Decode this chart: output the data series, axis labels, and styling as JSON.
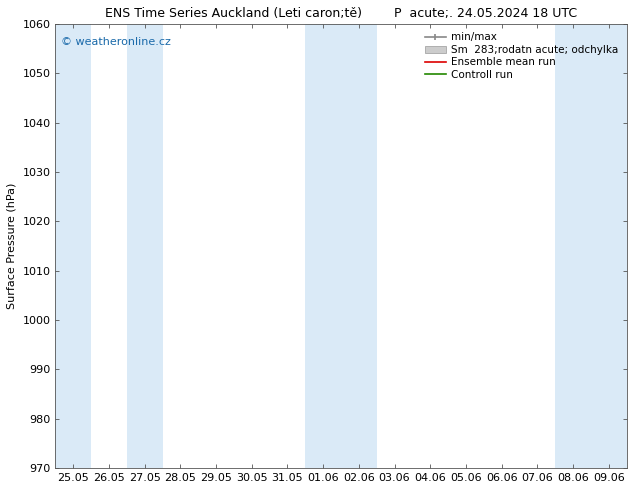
{
  "title": "ENS Time Series Auckland (Leti caron;tě)        P  acute;. 24.05.2024 18 UTC",
  "ylabel": "Surface Pressure (hPa)",
  "ylim": [
    970,
    1060
  ],
  "yticks": [
    970,
    980,
    990,
    1000,
    1010,
    1020,
    1030,
    1040,
    1050,
    1060
  ],
  "xtick_labels": [
    "25.05",
    "26.05",
    "27.05",
    "28.05",
    "29.05",
    "30.05",
    "31.05",
    "01.06",
    "02.06",
    "03.06",
    "04.06",
    "05.06",
    "06.06",
    "07.06",
    "08.06",
    "09.06"
  ],
  "num_xticks": 16,
  "background_color": "#ffffff",
  "plot_bg_color": "#ffffff",
  "shaded_band_color": "#daeaf7",
  "shaded_indices": [
    0,
    2,
    7,
    8,
    14,
    15
  ],
  "watermark_text": "© weatheronline.cz",
  "watermark_color": "#1a6aaa",
  "legend_items": [
    "min/max",
    "Sm  283;rodatn acute; odchylka",
    "Ensemble mean run",
    "Controll run"
  ],
  "legend_colors_line": [
    "#888888",
    "#bbbbbb",
    "#dd0000",
    "#228800"
  ],
  "font_size_title": 9,
  "font_size_ylabel": 8,
  "font_size_ticks": 8,
  "font_size_legend": 7.5,
  "font_size_watermark": 8
}
